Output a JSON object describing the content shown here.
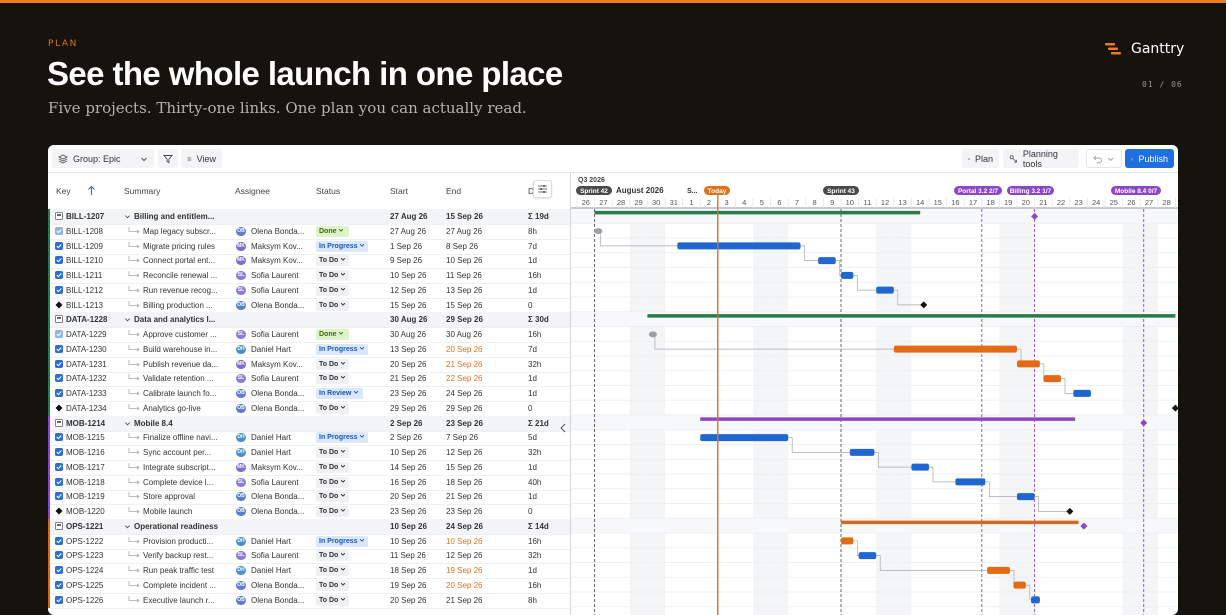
{
  "slide": {
    "eyebrow": "PLAN",
    "title": "See the whole launch in one place",
    "subtitle": "Five projects. Thirty-one links. One plan you can actually read.",
    "brand": "Ganttry",
    "page": "01 / 06"
  },
  "colors": {
    "accent": "#f07a1f",
    "bar_blue": "#1f66d1",
    "bar_orange": "#e56a14",
    "epic_green": "#2b7a4b",
    "epic_purple": "#8b47c8",
    "epic_orange": "#d2691e",
    "today": "#e0711b"
  },
  "toolbar": {
    "group": "Group: Epic",
    "view": "View",
    "plan": "Plan",
    "planning_tools": "Planning tools",
    "publish": "Publish",
    "icons": [
      "layers-icon",
      "filter-icon",
      "view-list-icon",
      "map-icon",
      "planning-tools-icon",
      "undo-icon",
      "chevron-down-icon",
      "upload-icon"
    ]
  },
  "columns": {
    "key": "Key",
    "summary": "Summary",
    "assignee": "Assignee",
    "status": "Status",
    "start": "Start",
    "end": "End",
    "duration": "D"
  },
  "timeline": {
    "year_label": "Q3 2026",
    "month_label": "August 2026",
    "sprint_short": "S...",
    "today_label": "Today",
    "sprints": [
      "Sprint 42",
      "Sprint 43"
    ],
    "milestones": [
      "Portal 3.2 2/7",
      "Billing 3.2 1/7",
      "Mobile 8.4 0/7"
    ],
    "days": [
      "26",
      "27",
      "28",
      "29",
      "30",
      "31",
      "1",
      "2",
      "3",
      "4",
      "5",
      "6",
      "7",
      "8",
      "9",
      "10",
      "11",
      "12",
      "13",
      "14",
      "15",
      "16",
      "17",
      "18",
      "19",
      "20",
      "21",
      "22",
      "23",
      "24",
      "25",
      "26",
      "27",
      "28",
      "2"
    ]
  },
  "rows": [
    {
      "type": "epic",
      "key": "BILL-1207",
      "summary": "Billing and entitlem...",
      "assignee": "",
      "initials": "",
      "status": "",
      "start": "27 Aug 26",
      "end": "15 Sep 26",
      "dur": "Σ 19d",
      "color": "#2b7a4b"
    },
    {
      "type": "done",
      "key": "BILL-1208",
      "summary": "Map legacy subscr...",
      "assignee": "Olena Bonda...",
      "initials": "OB",
      "status": "Done",
      "start": "27 Aug 26",
      "end": "27 Aug 26",
      "dur": "8h"
    },
    {
      "type": "task",
      "key": "BILL-1209",
      "summary": "Migrate pricing rules",
      "assignee": "Maksym Kov...",
      "initials": "MK",
      "status": "In Progress",
      "start": "1 Sep 26",
      "end": "8 Sep 26",
      "dur": "7d"
    },
    {
      "type": "task",
      "key": "BILL-1210",
      "summary": "Connect portal ent...",
      "assignee": "Maksym Kov...",
      "initials": "MK",
      "status": "To Do",
      "start": "9 Sep 26",
      "end": "10 Sep 26",
      "dur": "1d"
    },
    {
      "type": "task",
      "key": "BILL-1211",
      "summary": "Reconcile renewal ...",
      "assignee": "Sofia Laurent",
      "initials": "SL",
      "status": "To Do",
      "start": "10 Sep 26",
      "end": "11 Sep 26",
      "dur": "16h"
    },
    {
      "type": "task",
      "key": "BILL-1212",
      "summary": "Run revenue recog...",
      "assignee": "Sofia Laurent",
      "initials": "SL",
      "status": "To Do",
      "start": "12 Sep 26",
      "end": "13 Sep 26",
      "dur": "1d"
    },
    {
      "type": "milestone",
      "key": "BILL-1213",
      "summary": "Billing production ...",
      "assignee": "Olena Bonda...",
      "initials": "OB",
      "status": "To Do",
      "start": "15 Sep 26",
      "end": "15 Sep 26",
      "dur": "0"
    },
    {
      "type": "epic",
      "key": "DATA-1228",
      "summary": "Data and analytics l...",
      "assignee": "",
      "initials": "",
      "status": "",
      "start": "30 Aug 26",
      "end": "29 Sep 26",
      "dur": "Σ 30d",
      "color": "#2b7a4b"
    },
    {
      "type": "done",
      "key": "DATA-1229",
      "summary": "Approve customer ...",
      "assignee": "Sofia Laurent",
      "initials": "SL",
      "status": "Done",
      "start": "30 Aug 26",
      "end": "30 Aug 26",
      "dur": "16h"
    },
    {
      "type": "task",
      "key": "DATA-1230",
      "summary": "Build warehouse in...",
      "assignee": "Daniel Hart",
      "initials": "DH",
      "status": "In Progress",
      "start": "13 Sep 26",
      "end": "20 Sep 26",
      "endLate": true,
      "dur": "7d"
    },
    {
      "type": "task",
      "key": "DATA-1231",
      "summary": "Publish revenue da...",
      "assignee": "Maksym Kov...",
      "initials": "MK",
      "status": "To Do",
      "start": "20 Sep 26",
      "end": "21 Sep 26",
      "endLate": true,
      "dur": "32h"
    },
    {
      "type": "task",
      "key": "DATA-1232",
      "summary": "Validate retention ...",
      "assignee": "Sofia Laurent",
      "initials": "SL",
      "status": "To Do",
      "start": "21 Sep 26",
      "end": "22 Sep 26",
      "endLate": true,
      "dur": "1d"
    },
    {
      "type": "task",
      "key": "DATA-1233",
      "summary": "Calibrate launch fo...",
      "assignee": "Olena Bonda...",
      "initials": "OB",
      "status": "In Review",
      "start": "23 Sep 26",
      "end": "24 Sep 26",
      "dur": "1d"
    },
    {
      "type": "milestone",
      "key": "DATA-1234",
      "summary": "Analytics go-live",
      "assignee": "Olena Bonda...",
      "initials": "OB",
      "status": "To Do",
      "start": "29 Sep 26",
      "end": "29 Sep 26",
      "dur": "0"
    },
    {
      "type": "epic",
      "key": "MOB-1214",
      "summary": "Mobile 8.4",
      "assignee": "",
      "initials": "",
      "status": "",
      "start": "2 Sep 26",
      "end": "23 Sep 26",
      "dur": "Σ 21d",
      "color": "#8b47c8"
    },
    {
      "type": "task",
      "key": "MOB-1215",
      "summary": "Finalize offline navi...",
      "assignee": "Daniel Hart",
      "initials": "DH",
      "status": "In Progress",
      "start": "2 Sep 26",
      "end": "7 Sep 26",
      "dur": "5d"
    },
    {
      "type": "task",
      "key": "MOB-1216",
      "summary": "Sync account per...",
      "assignee": "Daniel Hart",
      "initials": "DH",
      "status": "To Do",
      "start": "10 Sep 26",
      "end": "12 Sep 26",
      "dur": "32h"
    },
    {
      "type": "task",
      "key": "MOB-1217",
      "summary": "Integrate subscript...",
      "assignee": "Maksym Kov...",
      "initials": "MK",
      "status": "To Do",
      "start": "14 Sep 26",
      "end": "15 Sep 26",
      "dur": "1d"
    },
    {
      "type": "task",
      "key": "MOB-1218",
      "summary": "Complete device l...",
      "assignee": "Sofia Laurent",
      "initials": "SL",
      "status": "To Do",
      "start": "16 Sep 26",
      "end": "18 Sep 26",
      "dur": "40h"
    },
    {
      "type": "task",
      "key": "MOB-1219",
      "summary": "Store approval",
      "assignee": "Olena Bonda...",
      "initials": "OB",
      "status": "To Do",
      "start": "20 Sep 26",
      "end": "21 Sep 26",
      "dur": "1d"
    },
    {
      "type": "milestone",
      "key": "MOB-1220",
      "summary": "Mobile launch",
      "assignee": "Olena Bonda...",
      "initials": "OB",
      "status": "To Do",
      "start": "23 Sep 26",
      "end": "23 Sep 26",
      "dur": "0"
    },
    {
      "type": "epic",
      "key": "OPS-1221",
      "summary": "Operational readiness",
      "assignee": "",
      "initials": "",
      "status": "",
      "start": "10 Sep 26",
      "end": "24 Sep 26",
      "dur": "Σ 14d",
      "color": "#d2691e"
    },
    {
      "type": "task",
      "key": "OPS-1222",
      "summary": "Provision producti...",
      "assignee": "Daniel Hart",
      "initials": "DH",
      "status": "In Progress",
      "start": "10 Sep 26",
      "end": "10 Sep 26",
      "endLate": true,
      "dur": "16h"
    },
    {
      "type": "task",
      "key": "OPS-1223",
      "summary": "Verify backup rest...",
      "assignee": "Sofia Laurent",
      "initials": "SL",
      "status": "To Do",
      "start": "11 Sep 26",
      "end": "12 Sep 26",
      "dur": "32h"
    },
    {
      "type": "task",
      "key": "OPS-1224",
      "summary": "Run peak traffic test",
      "assignee": "Daniel Hart",
      "initials": "DH",
      "status": "To Do",
      "start": "18 Sep 26",
      "end": "19 Sep 26",
      "endLate": true,
      "dur": "1d"
    },
    {
      "type": "task",
      "key": "OPS-1225",
      "summary": "Complete incident ...",
      "assignee": "Olena Bonda...",
      "initials": "OB",
      "status": "To Do",
      "start": "19 Sep 26",
      "end": "20 Sep 26",
      "endLate": true,
      "dur": "16h"
    },
    {
      "type": "task",
      "key": "OPS-1226",
      "summary": "Executive launch r...",
      "assignee": "Olena Bonda...",
      "initials": "OB",
      "status": "To Do",
      "start": "20 Sep 26",
      "end": "21 Sep 26",
      "dur": "8h"
    }
  ],
  "bars": [
    {
      "row": 0,
      "kind": "epic",
      "color": "#2b7a4b",
      "s": 1,
      "e": 19.5
    },
    {
      "row": 1,
      "kind": "dot",
      "s": 1.1
    },
    {
      "row": 2,
      "kind": "task",
      "color": "#1f66d1",
      "s": 5.7,
      "e": 12.7
    },
    {
      "row": 3,
      "kind": "task",
      "color": "#1f66d1",
      "s": 13.7,
      "e": 14.7
    },
    {
      "row": 4,
      "kind": "task",
      "color": "#1f66d1",
      "s": 15,
      "e": 15.7
    },
    {
      "row": 5,
      "kind": "task",
      "color": "#1f66d1",
      "s": 17,
      "e": 18
    },
    {
      "row": 6,
      "kind": "diamond",
      "color": "#111",
      "s": 19.7
    },
    {
      "row": 7,
      "kind": "epic",
      "color": "#2b7a4b",
      "s": 4,
      "e": 34
    },
    {
      "row": 8,
      "kind": "dot",
      "s": 4.2
    },
    {
      "row": 9,
      "kind": "task",
      "color": "#e56a14",
      "s": 18,
      "e": 25
    },
    {
      "row": 10,
      "kind": "task",
      "color": "#e56a14",
      "s": 25,
      "e": 26.3
    },
    {
      "row": 11,
      "kind": "task",
      "color": "#e56a14",
      "s": 26.5,
      "e": 27.5
    },
    {
      "row": 12,
      "kind": "task",
      "color": "#1f66d1",
      "s": 28.2,
      "e": 29.2
    },
    {
      "row": 13,
      "kind": "diamond",
      "color": "#111",
      "s": 34
    },
    {
      "row": 14,
      "kind": "epic",
      "color": "#8b47c8",
      "s": 7,
      "e": 28.3
    },
    {
      "row": 15,
      "kind": "task",
      "color": "#1f66d1",
      "s": 7,
      "e": 12
    },
    {
      "row": 16,
      "kind": "task",
      "color": "#1f66d1",
      "s": 15.5,
      "e": 16.9
    },
    {
      "row": 17,
      "kind": "task",
      "color": "#1f66d1",
      "s": 19,
      "e": 20
    },
    {
      "row": 18,
      "kind": "task",
      "color": "#1f66d1",
      "s": 21.5,
      "e": 23.2
    },
    {
      "row": 19,
      "kind": "task",
      "color": "#1f66d1",
      "s": 25,
      "e": 26
    },
    {
      "row": 20,
      "kind": "diamond",
      "color": "#111",
      "s": 28
    },
    {
      "row": 21,
      "kind": "epic",
      "color": "#d2691e",
      "s": 15,
      "e": 28.5
    },
    {
      "row": 22,
      "kind": "task",
      "color": "#e56a14",
      "s": 15,
      "e": 15.7
    },
    {
      "row": 23,
      "kind": "task",
      "color": "#1f66d1",
      "s": 16,
      "e": 17
    },
    {
      "row": 24,
      "kind": "task",
      "color": "#e56a14",
      "s": 23.3,
      "e": 24.6
    },
    {
      "row": 25,
      "kind": "task",
      "color": "#e56a14",
      "s": 24.8,
      "e": 25.5
    },
    {
      "row": 26,
      "kind": "task",
      "color": "#1f66d1",
      "s": 25.8,
      "e": 26.3
    }
  ]
}
